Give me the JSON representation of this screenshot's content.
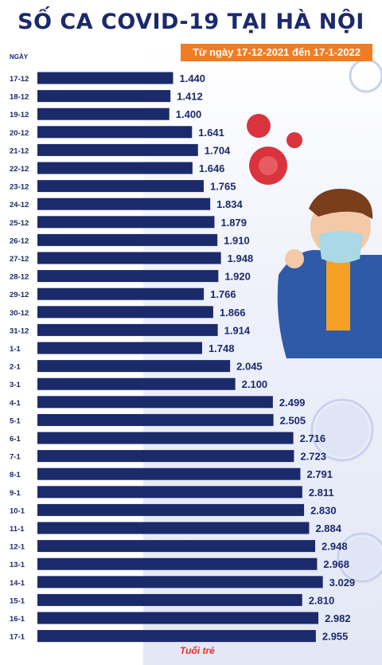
{
  "title": "SỐ CA COVID-19 TẠI HÀ NỘI",
  "subtitle": "Từ ngày 17-12-2021 đến 17-1-2022",
  "logo": "Tuổi trẻ",
  "colors": {
    "bar": "#1b2a6b",
    "label": "#1b2a6b",
    "accent": "#f07d23"
  },
  "chart_data": {
    "type": "bar",
    "orientation": "horizontal",
    "title": "SỐ CA COVID-19 TẠI HÀ NỘI",
    "subtitle": "Từ ngày 17-12-2021 đến 17-1-2022",
    "xlabel": "",
    "ylabel": "NGÀY",
    "xlim": [
      0,
      3100
    ],
    "categories": [
      "17-12",
      "18-12",
      "19-12",
      "20-12",
      "21-12",
      "22-12",
      "23-12",
      "24-12",
      "25-12",
      "26-12",
      "27-12",
      "28-12",
      "29-12",
      "30-12",
      "31-12",
      "1-1",
      "2-1",
      "3-1",
      "4-1",
      "5-1",
      "6-1",
      "7-1",
      "8-1",
      "9-1",
      "10-1",
      "11-1",
      "12-1",
      "13-1",
      "14-1",
      "15-1",
      "16-1",
      "17-1"
    ],
    "values": [
      1440,
      1412,
      1400,
      1641,
      1704,
      1646,
      1765,
      1834,
      1879,
      1910,
      1948,
      1920,
      1766,
      1866,
      1914,
      1748,
      2045,
      2100,
      2499,
      2505,
      2716,
      2723,
      2791,
      2811,
      2830,
      2884,
      2948,
      2968,
      3029,
      2810,
      2982,
      2955
    ],
    "value_labels": [
      "1.440",
      "1.412",
      "1.400",
      "1.641",
      "1.704",
      "1.646",
      "1.765",
      "1.834",
      "1.879",
      "1.910",
      "1.948",
      "1.920",
      "1.766",
      "1.866",
      "1.914",
      "1.748",
      "2.045",
      "2.100",
      "2.499",
      "2.505",
      "2.716",
      "2.723",
      "2.791",
      "2.811",
      "2.830",
      "2.884",
      "2.948",
      "2.968",
      "3.029",
      "2.810",
      "2.982",
      "2.955"
    ],
    "grid": false,
    "legend": "none"
  }
}
